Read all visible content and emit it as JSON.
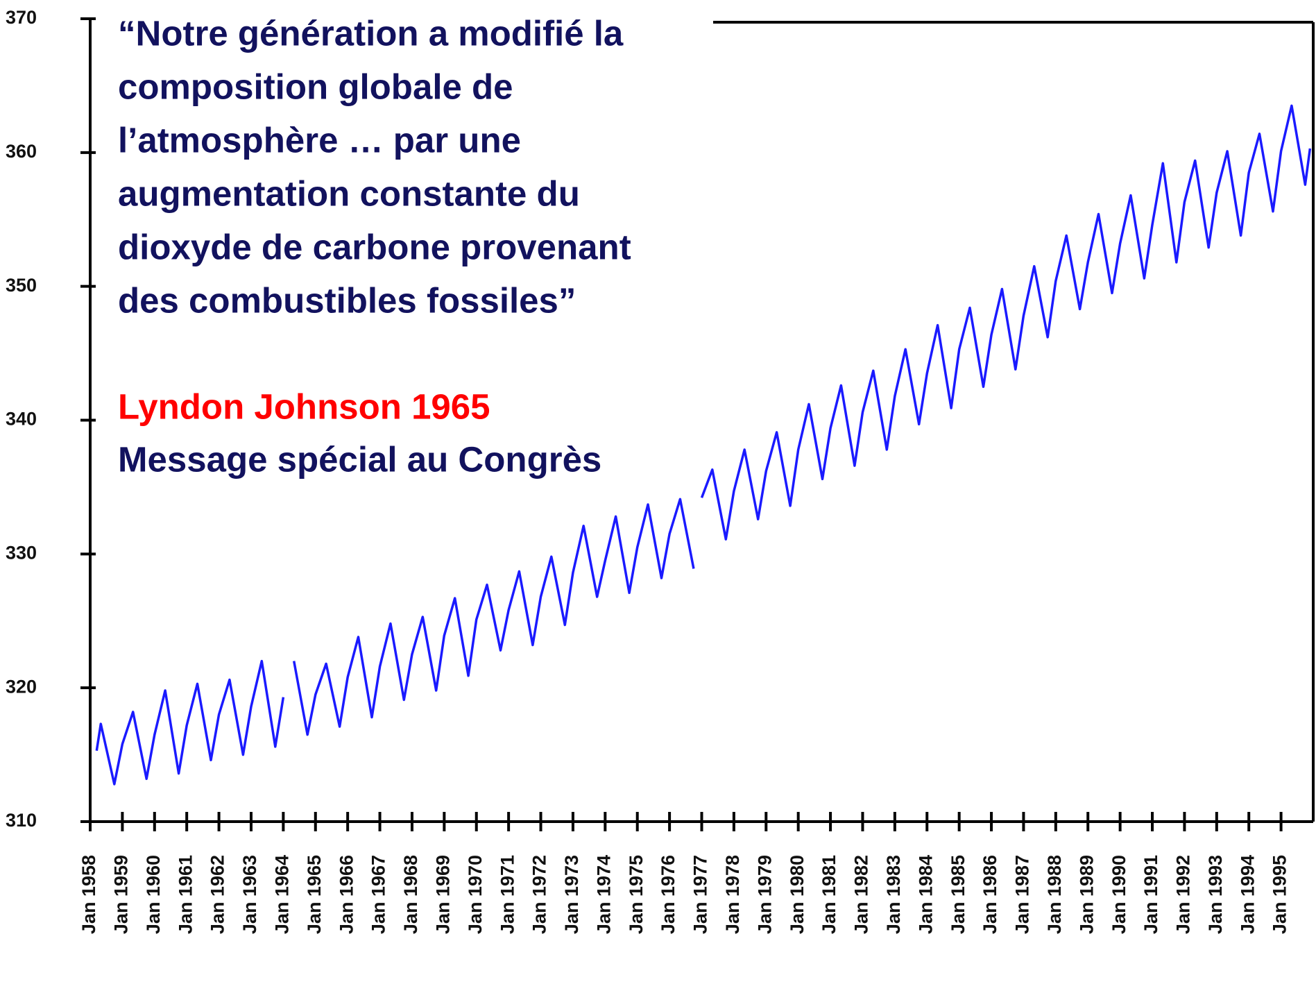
{
  "chart_data": {
    "type": "line",
    "annotations": {
      "quote_lines": [
        "“Notre génération a modifié la",
        "composition globale de",
        "l’atmosphère … par une",
        "augmentation constante du",
        "dioxyde de carbone provenant",
        "des combustibles fossiles”"
      ],
      "author": "Lyndon Johnson 1965",
      "source": "Message spécial au Congrès"
    },
    "x": [
      1958.2,
      1958.33,
      1958.75,
      1959,
      1959.33,
      1959.75,
      1960,
      1960.33,
      1960.75,
      1961,
      1961.33,
      1961.75,
      1962,
      1962.33,
      1962.75,
      1963,
      1963.33,
      1963.75,
      1964,
      1964.1,
      1964.33,
      1964.75,
      1965,
      1965.33,
      1965.75,
      1966,
      1966.33,
      1966.75,
      1967,
      1967.33,
      1967.75,
      1968,
      1968.33,
      1968.75,
      1969,
      1969.33,
      1969.75,
      1970,
      1970.33,
      1970.75,
      1971,
      1971.33,
      1971.75,
      1972,
      1972.33,
      1972.75,
      1973,
      1973.33,
      1973.75,
      1974,
      1974.33,
      1974.75,
      1975,
      1975.33,
      1975.75,
      1976,
      1976.33,
      1976.75,
      1976.9,
      1977,
      1977.33,
      1977.75,
      1978,
      1978.33,
      1978.75,
      1979,
      1979.33,
      1979.75,
      1980,
      1980.33,
      1980.75,
      1981,
      1981.33,
      1981.75,
      1982,
      1982.33,
      1982.75,
      1983,
      1983.33,
      1983.75,
      1984,
      1984.33,
      1984.75,
      1985,
      1985.33,
      1985.75,
      1986,
      1986.33,
      1986.75,
      1987,
      1987.33,
      1987.75,
      1988,
      1988.33,
      1988.75,
      1989,
      1989.33,
      1989.75,
      1990,
      1990.33,
      1990.75,
      1991,
      1991.33,
      1991.75,
      1992,
      1992.33,
      1992.75,
      1993,
      1993.33,
      1993.75,
      1994,
      1994.33,
      1994.75,
      1995,
      1995.33,
      1995.75,
      1995.9
    ],
    "series": [
      {
        "color": "#1a1aff",
        "values": [
          315.3,
          317.3,
          312.8,
          315.8,
          318.2,
          313.2,
          316.5,
          319.8,
          313.6,
          317.2,
          320.3,
          314.6,
          318,
          320.6,
          315,
          318.6,
          322,
          315.6,
          319.3,
          null,
          322,
          316.5,
          319.5,
          321.8,
          317.1,
          320.8,
          323.8,
          317.8,
          321.6,
          324.8,
          319.1,
          322.5,
          325.3,
          319.8,
          323.9,
          326.7,
          320.9,
          325.1,
          327.7,
          322.8,
          325.8,
          328.7,
          323.2,
          326.8,
          329.8,
          324.7,
          328.6,
          332.1,
          326.8,
          329.5,
          332.8,
          327.1,
          330.5,
          333.7,
          328.2,
          331.5,
          334.1,
          328.9,
          null,
          334.2,
          336.3,
          331.1,
          334.7,
          337.8,
          332.6,
          336.2,
          339.1,
          333.6,
          337.8,
          341.2,
          335.6,
          339.4,
          342.6,
          336.6,
          340.6,
          343.7,
          337.8,
          341.8,
          345.3,
          339.7,
          343.5,
          347.1,
          340.9,
          345.3,
          348.4,
          342.5,
          346.4,
          349.8,
          343.8,
          347.8,
          351.5,
          346.2,
          350.4,
          353.8,
          348.3,
          351.8,
          355.4,
          349.5,
          353.2,
          356.8,
          350.6,
          354.6,
          359.2,
          351.8,
          356.3,
          359.4,
          352.9,
          357,
          360.1,
          353.8,
          358.5,
          361.4,
          355.6,
          360.1,
          363.5,
          357.6,
          360.3
        ]
      }
    ],
    "xlim": [
      1958,
      1996
    ],
    "ylim": [
      310,
      370
    ],
    "yticks": [
      310,
      320,
      330,
      340,
      350,
      360,
      370
    ],
    "xticks": [
      {
        "value": 1958,
        "label": "Jan 1958"
      },
      {
        "value": 1959,
        "label": "Jan 1959"
      },
      {
        "value": 1960,
        "label": "Jan 1960"
      },
      {
        "value": 1961,
        "label": "Jan 1961"
      },
      {
        "value": 1962,
        "label": "Jan 1962"
      },
      {
        "value": 1963,
        "label": "Jan 1963"
      },
      {
        "value": 1964,
        "label": "Jan 1964"
      },
      {
        "value": 1965,
        "label": "Jan 1965"
      },
      {
        "value": 1966,
        "label": "Jan 1966"
      },
      {
        "value": 1967,
        "label": "Jan 1967"
      },
      {
        "value": 1968,
        "label": "Jan 1968"
      },
      {
        "value": 1969,
        "label": "Jan 1969"
      },
      {
        "value": 1970,
        "label": "Jan 1970"
      },
      {
        "value": 1971,
        "label": "Jan 1971"
      },
      {
        "value": 1972,
        "label": "Jan 1972"
      },
      {
        "value": 1973,
        "label": "Jan 1973"
      },
      {
        "value": 1974,
        "label": "Jan 1974"
      },
      {
        "value": 1975,
        "label": "Jan 1975"
      },
      {
        "value": 1976,
        "label": "Jan 1976"
      },
      {
        "value": 1977,
        "label": "Jan 1977"
      },
      {
        "value": 1978,
        "label": "Jan 1978"
      },
      {
        "value": 1979,
        "label": "Jan 1979"
      },
      {
        "value": 1980,
        "label": "Jan 1980"
      },
      {
        "value": 1981,
        "label": "Jan 1981"
      },
      {
        "value": 1982,
        "label": "Jan 1982"
      },
      {
        "value": 1983,
        "label": "Jan 1983"
      },
      {
        "value": 1984,
        "label": "Jan 1984"
      },
      {
        "value": 1985,
        "label": "Jan 1985"
      },
      {
        "value": 1986,
        "label": "Jan 1986"
      },
      {
        "value": 1987,
        "label": "Jan 1987"
      },
      {
        "value": 1988,
        "label": "Jan 1988"
      },
      {
        "value": 1989,
        "label": "Jan 1989"
      },
      {
        "value": 1990,
        "label": "Jan 1990"
      },
      {
        "value": 1991,
        "label": "Jan 1991"
      },
      {
        "value": 1992,
        "label": "Jan 1992"
      },
      {
        "value": 1993,
        "label": "Jan 1993"
      },
      {
        "value": 1994,
        "label": "Jan 1994"
      },
      {
        "value": 1995,
        "label": "Jan 1995"
      }
    ]
  }
}
